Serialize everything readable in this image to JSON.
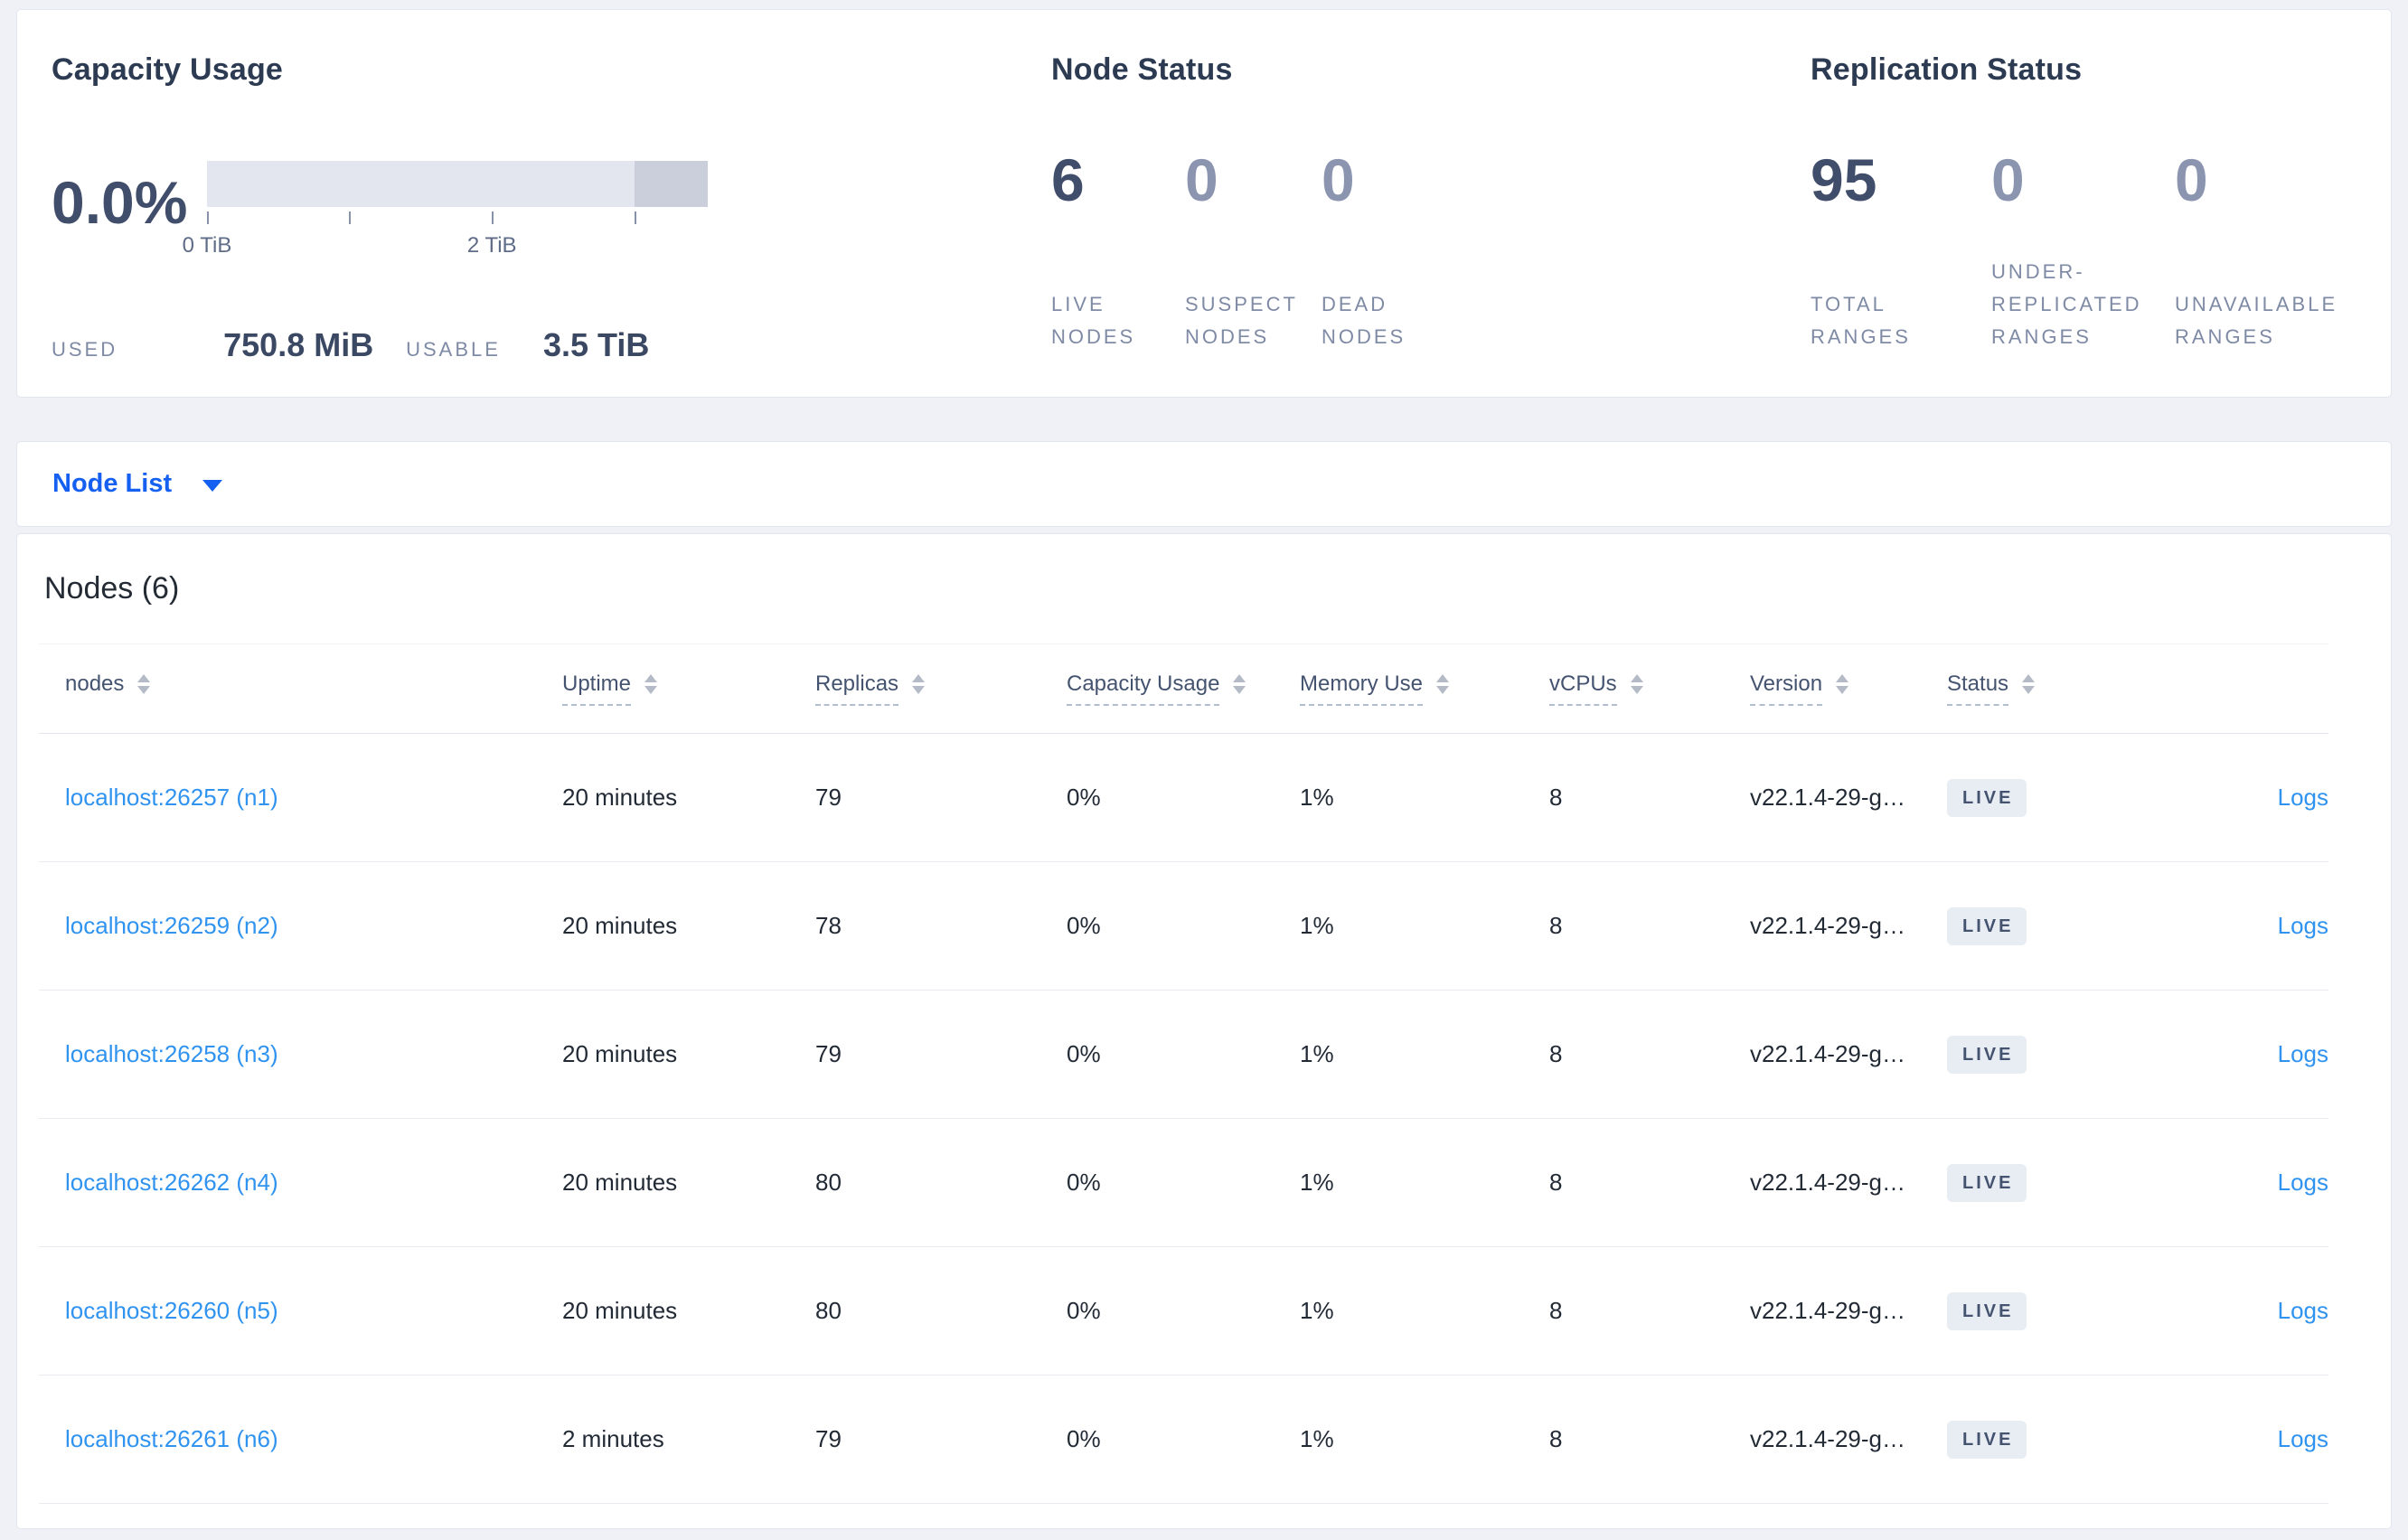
{
  "summary": {
    "capacity": {
      "title": "Capacity Usage",
      "percent": "0.0%",
      "used_label": "USED",
      "used_value": "750.8 MiB",
      "usable_label": "USABLE",
      "usable_value": "3.5 TiB",
      "bar": {
        "tick_labels": [
          "0 TiB",
          "",
          "2 TiB",
          ""
        ],
        "tick_positions_pct": [
          0,
          28.4,
          56.9,
          85.3
        ],
        "muted_segment_start_pct": 85.3
      }
    },
    "node_status": {
      "title": "Node Status",
      "stats": [
        {
          "value": "6",
          "label": "LIVE NODES",
          "primary": true
        },
        {
          "value": "0",
          "label": "SUSPECT NODES",
          "primary": false
        },
        {
          "value": "0",
          "label": "DEAD NODES",
          "primary": false
        }
      ]
    },
    "replication_status": {
      "title": "Replication Status",
      "stats": [
        {
          "value": "95",
          "label": "TOTAL RANGES",
          "primary": true
        },
        {
          "value": "0",
          "label": "UNDER-REPLICATED RANGES",
          "primary": false
        },
        {
          "value": "0",
          "label": "UNAVAILABLE RANGES",
          "primary": false
        }
      ]
    }
  },
  "view_selector": {
    "label": "Node List",
    "caret_icon": "chevron-down-icon"
  },
  "nodes_table": {
    "title": "Nodes (6)",
    "columns": [
      {
        "key": "address",
        "label": "nodes",
        "sortable": true,
        "tooltip_underline": false
      },
      {
        "key": "uptime",
        "label": "Uptime",
        "sortable": true,
        "tooltip_underline": true
      },
      {
        "key": "replicas",
        "label": "Replicas",
        "sortable": true,
        "tooltip_underline": true
      },
      {
        "key": "capacity",
        "label": "Capacity Usage",
        "sortable": true,
        "tooltip_underline": true
      },
      {
        "key": "memory",
        "label": "Memory Use",
        "sortable": true,
        "tooltip_underline": true
      },
      {
        "key": "vcpus",
        "label": "vCPUs",
        "sortable": true,
        "tooltip_underline": true
      },
      {
        "key": "version",
        "label": "Version",
        "sortable": true,
        "tooltip_underline": true
      },
      {
        "key": "status",
        "label": "Status",
        "sortable": true,
        "tooltip_underline": true
      },
      {
        "key": "logs",
        "label": "",
        "sortable": false,
        "tooltip_underline": false
      }
    ],
    "rows": [
      {
        "address": "localhost:26257 (n1)",
        "uptime": "20 minutes",
        "replicas": "79",
        "capacity": "0%",
        "memory": "1%",
        "vcpus": "8",
        "version": "v22.1.4-29-g…",
        "status": "LIVE",
        "logs": "Logs"
      },
      {
        "address": "localhost:26259 (n2)",
        "uptime": "20 minutes",
        "replicas": "78",
        "capacity": "0%",
        "memory": "1%",
        "vcpus": "8",
        "version": "v22.1.4-29-g…",
        "status": "LIVE",
        "logs": "Logs"
      },
      {
        "address": "localhost:26258 (n3)",
        "uptime": "20 minutes",
        "replicas": "79",
        "capacity": "0%",
        "memory": "1%",
        "vcpus": "8",
        "version": "v22.1.4-29-g…",
        "status": "LIVE",
        "logs": "Logs"
      },
      {
        "address": "localhost:26262 (n4)",
        "uptime": "20 minutes",
        "replicas": "80",
        "capacity": "0%",
        "memory": "1%",
        "vcpus": "8",
        "version": "v22.1.4-29-g…",
        "status": "LIVE",
        "logs": "Logs"
      },
      {
        "address": "localhost:26260 (n5)",
        "uptime": "20 minutes",
        "replicas": "80",
        "capacity": "0%",
        "memory": "1%",
        "vcpus": "8",
        "version": "v22.1.4-29-g…",
        "status": "LIVE",
        "logs": "Logs"
      },
      {
        "address": "localhost:26261 (n6)",
        "uptime": "2 minutes",
        "replicas": "79",
        "capacity": "0%",
        "memory": "1%",
        "vcpus": "8",
        "version": "v22.1.4-29-g…",
        "status": "LIVE",
        "logs": "Logs"
      }
    ]
  },
  "colors": {
    "accent_blue": "#1560f0",
    "link_blue": "#3093ef",
    "badge_bg": "#e8edf3",
    "badge_text": "#44536f",
    "bar_light": "#e3e5ef",
    "bar_muted": "#cacfdb"
  }
}
